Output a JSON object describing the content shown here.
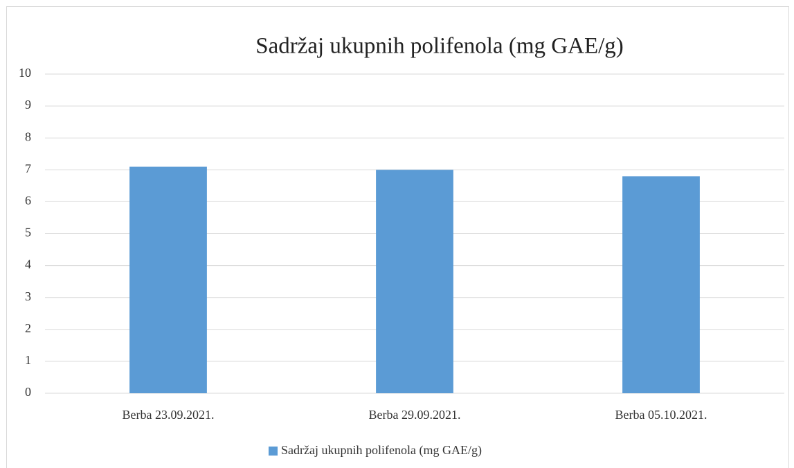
{
  "chart_data": {
    "type": "bar",
    "title": "Sadržaj ukupnih polifenola (mg GAE/g)",
    "categories": [
      "Berba 23.09.2021.",
      "Berba 29.09.2021.",
      "Berba 05.10.2021."
    ],
    "series": [
      {
        "name": "Sadržaj ukupnih polifenola (mg GAE/g)",
        "color": "#5b9bd5",
        "values": [
          7.1,
          7.0,
          6.8
        ]
      }
    ],
    "ylim": [
      0,
      10
    ],
    "yticks": [
      0,
      1,
      2,
      3,
      4,
      5,
      6,
      7,
      8,
      9,
      10
    ],
    "grid": true,
    "legend": "bottom"
  }
}
